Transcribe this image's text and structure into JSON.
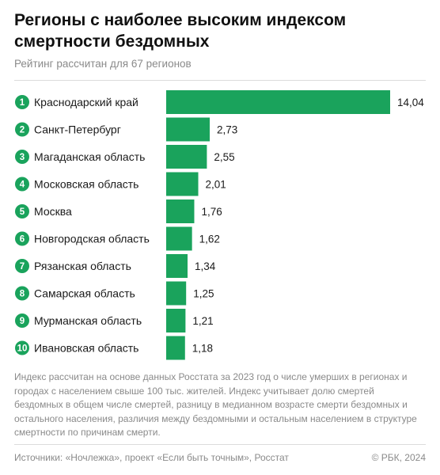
{
  "header": {
    "title": "Регионы с наиболее высоким индексом смертности бездомных",
    "subtitle": "Рейтинг рассчитан для 67 регионов"
  },
  "colors": {
    "bar": "#1aa35c",
    "rank_badge": "#1aa35c",
    "text": "#1a1a1a",
    "muted": "#8a8a8a"
  },
  "chart_data": {
    "type": "bar",
    "orientation": "horizontal",
    "ranks": [
      "1",
      "2",
      "3",
      "4",
      "5",
      "6",
      "7",
      "8",
      "9",
      "10"
    ],
    "categories": [
      "Краснодарский край",
      "Санкт-Петербург",
      "Магаданская область",
      "Московская область",
      "Москва",
      "Новгородская область",
      "Рязанская область",
      "Самарская область",
      "Мурманская область",
      "Ивановская область"
    ],
    "values": [
      14.04,
      2.73,
      2.55,
      2.01,
      1.76,
      1.62,
      1.34,
      1.25,
      1.21,
      1.18
    ],
    "value_labels": [
      "14,04",
      "2,73",
      "2,55",
      "2,01",
      "1,76",
      "1,62",
      "1,34",
      "1,25",
      "1,21",
      "1,18"
    ],
    "title": "Регионы с наиболее высоким индексом смертности бездомных",
    "subtitle": "Рейтинг рассчитан для 67 регионов",
    "xlabel": "",
    "ylabel": "",
    "xlim": [
      0,
      14.04
    ],
    "grid": false,
    "legend": "none"
  },
  "note": "Индекс рассчитан на основе данных Росстата за 2023 год о числе умерших в регионах и городах с населением свыше 100 тыс. жителей. Индекс учитывает долю смертей бездомных в общем числе смертей, разницу в медианном возрасте смерти бездомных и остального населения, различия между бездомными и остальным населением в структуре смертности по причинам смерти.",
  "footer": {
    "source": "Источники: «Ночлежка», проект «Если быть точным», Росстат",
    "copyright": "© РБК, 2024"
  }
}
